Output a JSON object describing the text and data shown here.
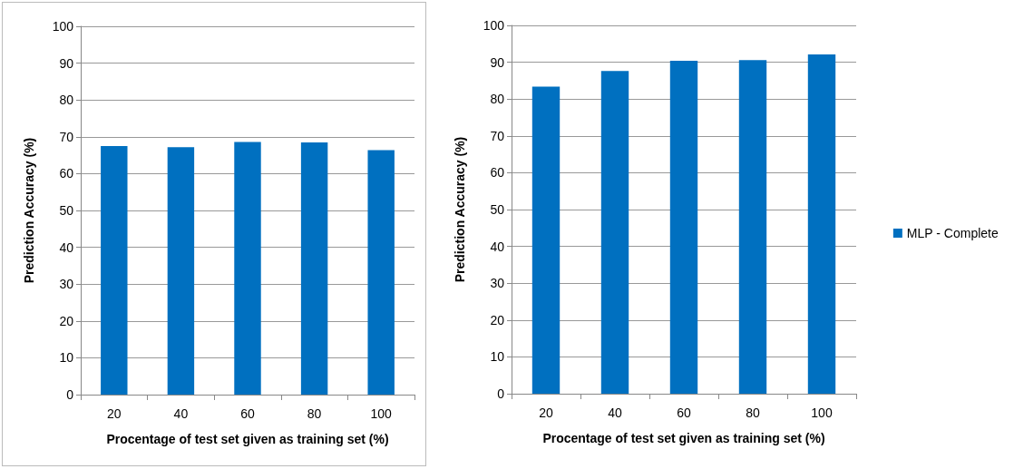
{
  "chart_data": [
    {
      "type": "bar",
      "categories": [
        "20",
        "40",
        "60",
        "80",
        "100"
      ],
      "series": [
        {
          "color": "#0070c0",
          "values": [
            67.5,
            67.2,
            68.6,
            68.5,
            66.4
          ]
        }
      ],
      "xlabel": "Procentage of test set given as training set (%)",
      "ylabel": "Prediction Accuracy (%)",
      "ylim": [
        0,
        100
      ],
      "yticks": [
        0,
        10,
        20,
        30,
        40,
        50,
        60,
        70,
        80,
        90,
        100
      ],
      "grid": "y",
      "legend": false
    },
    {
      "type": "bar",
      "categories": [
        "20",
        "40",
        "60",
        "80",
        "100"
      ],
      "series": [
        {
          "name": "MLP - Complete",
          "color": "#0070c0",
          "values": [
            83.4,
            87.6,
            90.4,
            90.6,
            92.1
          ]
        }
      ],
      "xlabel": "Procentage of test set given as training set (%)",
      "ylabel": "Prediction Accuracy (%)",
      "ylim": [
        0,
        100
      ],
      "yticks": [
        0,
        10,
        20,
        30,
        40,
        50,
        60,
        70,
        80,
        90,
        100
      ],
      "grid": "y",
      "legend": "right"
    }
  ]
}
